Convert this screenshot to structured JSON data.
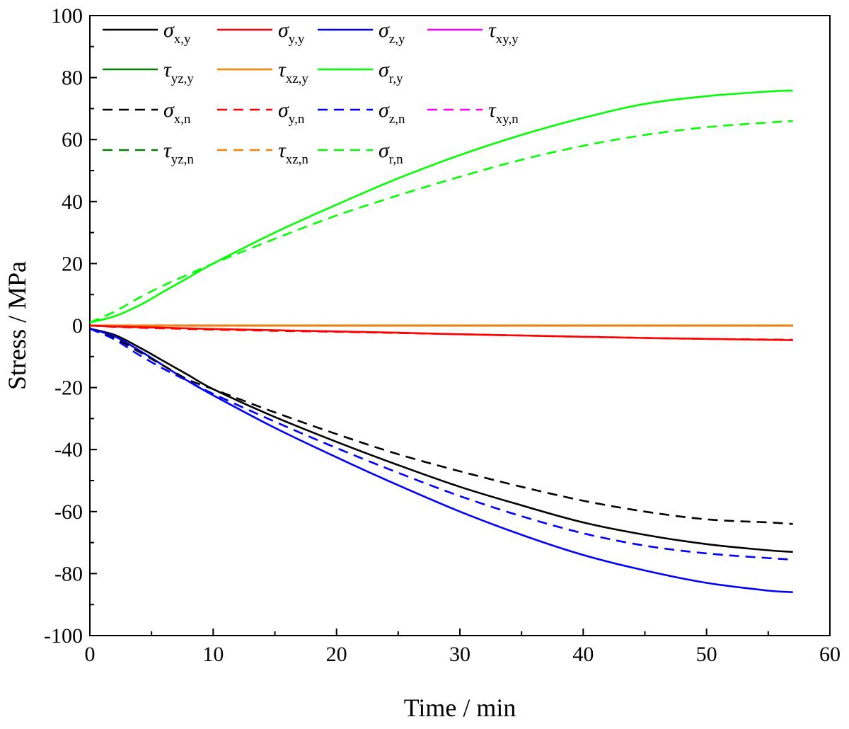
{
  "chart_data": {
    "type": "line",
    "xlabel": "Time / min",
    "ylabel": "Stress / MPa",
    "xlim": [
      0,
      60
    ],
    "ylim": [
      -100,
      100
    ],
    "x_ticks": [
      "0",
      "10",
      "20",
      "30",
      "40",
      "50",
      "60"
    ],
    "y_ticks": [
      "100",
      "80",
      "60",
      "40",
      "20",
      "0",
      "-20",
      "-40",
      "-60",
      "-80",
      "-100"
    ],
    "grid": false,
    "legend_position": "top-left",
    "x": [
      0,
      2,
      4,
      6,
      8,
      10,
      15,
      20,
      25,
      30,
      35,
      40,
      45,
      50,
      55,
      57
    ],
    "series": [
      {
        "name": "σx,y",
        "symbol": "σ",
        "sub": "x,y",
        "color": "#000000",
        "dash": "solid",
        "values": [
          -1,
          -3,
          -7,
          -11.5,
          -16,
          -20.5,
          -29.5,
          -37.5,
          -45,
          -52,
          -58,
          -63.5,
          -67.5,
          -70.5,
          -72.5,
          -73
        ]
      },
      {
        "name": "σy,y",
        "symbol": "σ",
        "sub": "y,y",
        "color": "#ff0000",
        "dash": "solid",
        "values": [
          0,
          -0.3,
          -0.5,
          -0.7,
          -0.9,
          -1.1,
          -1.5,
          -1.9,
          -2.3,
          -2.8,
          -3.2,
          -3.6,
          -4,
          -4.3,
          -4.6,
          -4.7
        ]
      },
      {
        "name": "σz,y",
        "symbol": "σ",
        "sub": "z,y",
        "color": "#0000ff",
        "dash": "solid",
        "values": [
          -1,
          -3.5,
          -8,
          -13,
          -18,
          -22.5,
          -33,
          -42.5,
          -51.5,
          -60,
          -67.5,
          -74,
          -79,
          -83,
          -85.5,
          -86
        ]
      },
      {
        "name": "τxy,y",
        "symbol": "τ",
        "sub": "xy,y",
        "color": "#ff00ff",
        "dash": "solid",
        "values": [
          0,
          0,
          0,
          0,
          0,
          0,
          0,
          0,
          0,
          0,
          0,
          0,
          0,
          0,
          0,
          0
        ]
      },
      {
        "name": "τyz,y",
        "symbol": "τ",
        "sub": "yz,y",
        "color": "#008000",
        "dash": "solid",
        "values": [
          0,
          0,
          0,
          0,
          0,
          0,
          0,
          0,
          0,
          0,
          0,
          0,
          0,
          0,
          0,
          0
        ]
      },
      {
        "name": "τxz,y",
        "symbol": "τ",
        "sub": "xz,y",
        "color": "#ff8000",
        "dash": "solid",
        "values": [
          0,
          0,
          0,
          0,
          0,
          0,
          0,
          0,
          0,
          0,
          0,
          0,
          0,
          0,
          0,
          0
        ]
      },
      {
        "name": "σr,y",
        "symbol": "σ",
        "sub": "r,y",
        "color": "#00ff00",
        "dash": "solid",
        "values": [
          1,
          3,
          6.5,
          11,
          15.5,
          20,
          30,
          39,
          47.5,
          55,
          61.5,
          67,
          71.5,
          74,
          75.5,
          75.8
        ]
      },
      {
        "name": "σx,n",
        "symbol": "σ",
        "sub": "x,n",
        "color": "#000000",
        "dash": "dashed",
        "values": [
          -1,
          -4,
          -8.5,
          -13,
          -17.5,
          -20.5,
          -28,
          -35,
          -41.5,
          -47,
          -52,
          -56.5,
          -60,
          -62.5,
          -63.5,
          -64
        ]
      },
      {
        "name": "σy,n",
        "symbol": "σ",
        "sub": "y,n",
        "color": "#ff0000",
        "dash": "dashed",
        "values": [
          0,
          -0.4,
          -0.7,
          -0.9,
          -1.1,
          -1.3,
          -1.7,
          -2,
          -2.4,
          -2.8,
          -3.2,
          -3.6,
          -4,
          -4.3,
          -4.5,
          -4.6
        ]
      },
      {
        "name": "σz,n",
        "symbol": "σ",
        "sub": "z,n",
        "color": "#0000ff",
        "dash": "dashed",
        "values": [
          -1,
          -4.5,
          -9.5,
          -14,
          -18,
          -22,
          -31,
          -39.5,
          -47.5,
          -55,
          -61.5,
          -67,
          -71,
          -73.5,
          -75,
          -75.5
        ]
      },
      {
        "name": "τxy,n",
        "symbol": "τ",
        "sub": "xy,n",
        "color": "#ff00ff",
        "dash": "dashed",
        "values": [
          0,
          0,
          0,
          0,
          0,
          0,
          0,
          0,
          0,
          0,
          0,
          0,
          0,
          0,
          0,
          0
        ]
      },
      {
        "name": "τyz,n",
        "symbol": "τ",
        "sub": "yz,n",
        "color": "#008000",
        "dash": "dashed",
        "values": [
          0,
          0,
          0,
          0,
          0,
          0,
          0,
          0,
          0,
          0,
          0,
          0,
          0,
          0,
          0,
          0
        ]
      },
      {
        "name": "τxz,n",
        "symbol": "τ",
        "sub": "xz,n",
        "color": "#ff8000",
        "dash": "dashed",
        "values": [
          0,
          0,
          0,
          0,
          0,
          0,
          0,
          0,
          0,
          0,
          0,
          0,
          0,
          0,
          0,
          0
        ]
      },
      {
        "name": "σr,n",
        "symbol": "σ",
        "sub": "r,n",
        "color": "#00ff00",
        "dash": "dashed",
        "values": [
          1,
          4.5,
          9,
          13,
          16.5,
          20,
          28,
          35.5,
          42,
          48,
          53.5,
          58,
          61.5,
          64,
          65.5,
          66
        ]
      }
    ]
  }
}
